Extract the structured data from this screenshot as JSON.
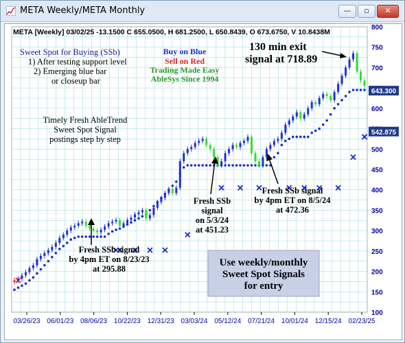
{
  "window": {
    "title": "META Weekly/META Monthly",
    "minimize": "—",
    "maximize": "▫",
    "close": "✕"
  },
  "header": {
    "info": "META [Weekly] 03/02/25 -13.1500 C 655.0500, H 681.2500, L 650.8439, O 673.6750, V 10.8438M"
  },
  "annotations": {
    "sweet_spot": [
      "Sweet Spot for Buying (SSb)",
      "1) After testing support level",
      "2) Emerging blue bar",
      "or closeup bar"
    ],
    "buy_on_blue": "Buy on Blue",
    "sell_on_red": "Sell on Red",
    "trading_made_easy": "Trading Made Easy",
    "ablesys": "AbleSys Since 1994",
    "exit": [
      "130 min exit",
      "signal at 718.89"
    ],
    "timely": [
      "Timely Fresh AbleTrend",
      "Sweet Spot Signal",
      "postings  step by step"
    ],
    "ssb1": [
      "Fresh SSb signal",
      "by 4pm ET on 8/23/23",
      "at 295.88"
    ],
    "ssb2": [
      "Fresh SSb",
      "signal",
      "on 5/3/24",
      "at 451.23"
    ],
    "ssb3": [
      "Fresh SSb signal",
      "by 4pm ET on 8/5/24",
      "at 472.36"
    ],
    "box": [
      "Use weekly/monthly",
      "Sweet Spot Signals",
      "for entry"
    ]
  },
  "colors": {
    "grid": "#a8dede",
    "axis_text": "#0000aa",
    "bar_blue": "#1f2fd6",
    "bar_green": "#33dd33",
    "bar_red": "#dd2222",
    "dot": "#1a2ccc",
    "box_fill": "#c8d0e6",
    "price_tag": "#1f3a8a"
  },
  "chart_data": {
    "type": "candlestick",
    "ylim": [
      100,
      800
    ],
    "y_ticks": [
      100,
      150,
      200,
      250,
      300,
      350,
      400,
      450,
      500,
      550,
      600,
      650,
      700,
      750,
      800
    ],
    "x_tick_labels": [
      "03/26/23",
      "06/01/23",
      "08/06/23",
      "10/22/23",
      "12/31/23",
      "03/03/24",
      "05/12/24",
      "07/21/24",
      "10/01/24",
      "12/15/24",
      "02/23/25"
    ],
    "price_tags": [
      {
        "label": "643.300",
        "value": 643.3
      },
      {
        "label": "542.875",
        "value": 542.875
      }
    ],
    "closes": [
      178,
      182,
      190,
      198,
      208,
      215,
      230,
      238,
      245,
      252,
      260,
      270,
      282,
      290,
      300,
      308,
      312,
      318,
      322,
      312,
      305,
      300,
      296,
      302,
      310,
      318,
      322,
      326,
      312,
      318,
      326,
      332,
      340,
      345,
      350,
      330,
      338,
      356,
      370,
      380,
      392,
      402,
      392,
      405,
      470,
      490,
      500,
      505,
      515,
      520,
      525,
      510,
      500,
      480,
      460,
      470,
      490,
      500,
      510,
      505,
      515,
      520,
      530,
      490,
      470,
      460,
      480,
      500,
      510,
      520,
      525,
      540,
      560,
      570,
      580,
      590,
      575,
      585,
      600,
      615,
      610,
      625,
      635,
      630,
      620,
      640,
      660,
      680,
      700,
      720,
      735,
      690,
      668,
      655
    ],
    "colors_seq": [
      "r",
      "b",
      "b",
      "b",
      "b",
      "b",
      "b",
      "b",
      "b",
      "b",
      "b",
      "b",
      "b",
      "b",
      "b",
      "b",
      "b",
      "b",
      "b",
      "g",
      "g",
      "g",
      "g",
      "b",
      "b",
      "b",
      "b",
      "b",
      "g",
      "b",
      "b",
      "b",
      "b",
      "b",
      "b",
      "g",
      "b",
      "b",
      "b",
      "b",
      "b",
      "b",
      "g",
      "b",
      "b",
      "b",
      "b",
      "b",
      "b",
      "b",
      "b",
      "g",
      "g",
      "g",
      "g",
      "b",
      "b",
      "b",
      "b",
      "g",
      "b",
      "b",
      "b",
      "g",
      "g",
      "g",
      "b",
      "b",
      "b",
      "b",
      "b",
      "b",
      "b",
      "b",
      "b",
      "b",
      "g",
      "b",
      "b",
      "b",
      "g",
      "b",
      "b",
      "g",
      "g",
      "b",
      "b",
      "b",
      "b",
      "b",
      "b",
      "g",
      "g",
      "g"
    ],
    "support_dots": [
      155,
      160,
      165,
      170,
      178,
      185,
      195,
      205,
      215,
      225,
      235,
      245,
      255,
      262,
      270,
      278,
      282,
      285,
      285,
      285,
      285,
      285,
      285,
      285,
      285,
      292,
      298,
      302,
      305,
      310,
      315,
      320,
      325,
      330,
      335,
      340,
      350,
      360,
      370,
      380,
      390,
      400,
      410,
      420,
      440,
      455,
      460,
      460,
      460,
      460,
      460,
      460,
      460,
      460,
      460,
      460,
      460,
      460,
      460,
      460,
      460,
      460,
      460,
      460,
      460,
      460,
      460,
      460,
      460,
      480,
      490,
      510,
      520,
      525,
      530,
      530,
      530,
      530,
      530,
      540,
      545,
      550,
      560,
      570,
      585,
      600,
      610,
      620,
      630,
      640,
      645,
      645,
      645,
      645
    ],
    "x_marks": [
      {
        "i": 1,
        "v": 178
      },
      {
        "i": 27,
        "v": 252
      },
      {
        "i": 28,
        "v": 252
      },
      {
        "i": 32,
        "v": 252
      },
      {
        "i": 36,
        "v": 252
      },
      {
        "i": 40,
        "v": 252
      },
      {
        "i": 46,
        "v": 290
      },
      {
        "i": 55,
        "v": 405
      },
      {
        "i": 60,
        "v": 405
      },
      {
        "i": 65,
        "v": 405
      },
      {
        "i": 73,
        "v": 405
      },
      {
        "i": 77,
        "v": 405
      },
      {
        "i": 81,
        "v": 405
      },
      {
        "i": 86,
        "v": 405
      },
      {
        "i": 90,
        "v": 480
      },
      {
        "i": 95,
        "v": 530
      },
      {
        "i": 99,
        "v": 530
      }
    ]
  }
}
